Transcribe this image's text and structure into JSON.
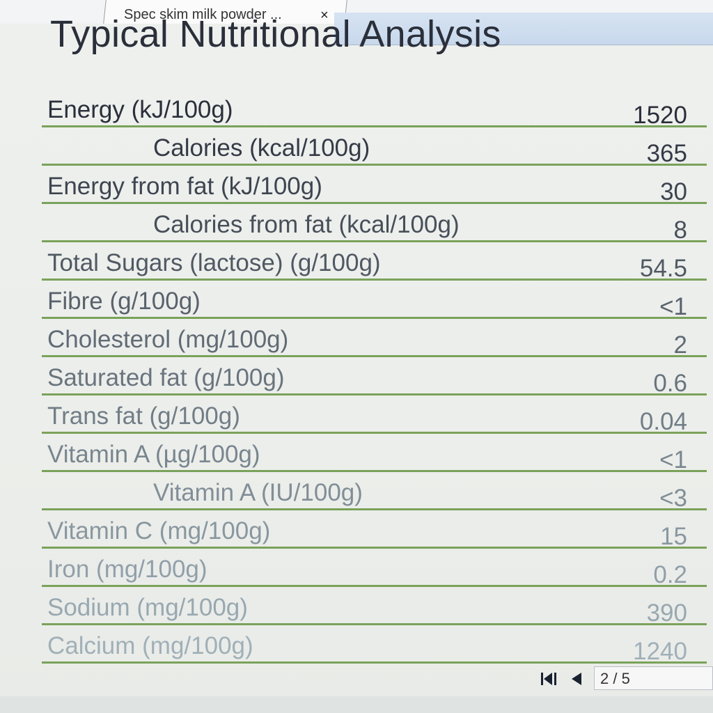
{
  "tab": {
    "title": "Spec skim milk powder ...",
    "close": "×"
  },
  "document": {
    "title": "Typical Nutritional Analysis",
    "rows": [
      {
        "label": "Energy (kJ/100g)",
        "value": "1520"
      },
      {
        "label": "Calories (kcal/100g)",
        "value": "365"
      },
      {
        "label": "Energy from fat (kJ/100g)",
        "value": "30"
      },
      {
        "label": "Calories from fat (kcal/100g)",
        "value": "8"
      },
      {
        "label": "Total Sugars (lactose) (g/100g)",
        "value": "54.5"
      },
      {
        "label": "Fibre (g/100g)",
        "value": "<1"
      },
      {
        "label": "Cholesterol (mg/100g)",
        "value": "2"
      },
      {
        "label": "Saturated fat (g/100g)",
        "value": "0.6"
      },
      {
        "label": "Trans fat (g/100g)",
        "value": "0.04"
      },
      {
        "label": "Vitamin A (µg/100g)",
        "value": "<1"
      },
      {
        "label": "Vitamin A (IU/100g)",
        "value": "<3"
      },
      {
        "label": "Vitamin C (mg/100g)",
        "value": "15"
      },
      {
        "label": "Iron (mg/100g)",
        "value": "0.2"
      },
      {
        "label": "Sodium (mg/100g)",
        "value": "390"
      },
      {
        "label": "Calcium (mg/100g)",
        "value": "1240"
      }
    ]
  },
  "pager": {
    "page_indicator": "2 / 5"
  },
  "colors": {
    "rule_green": "#7aa25a",
    "text_dark": "#2a2f3a",
    "text_fading": "#9fb0b8",
    "toolbar_blue": "#c8d8ec"
  },
  "icons": {
    "first_page": "first-page-icon",
    "prev_page": "previous-page-icon",
    "close": "close-icon"
  }
}
